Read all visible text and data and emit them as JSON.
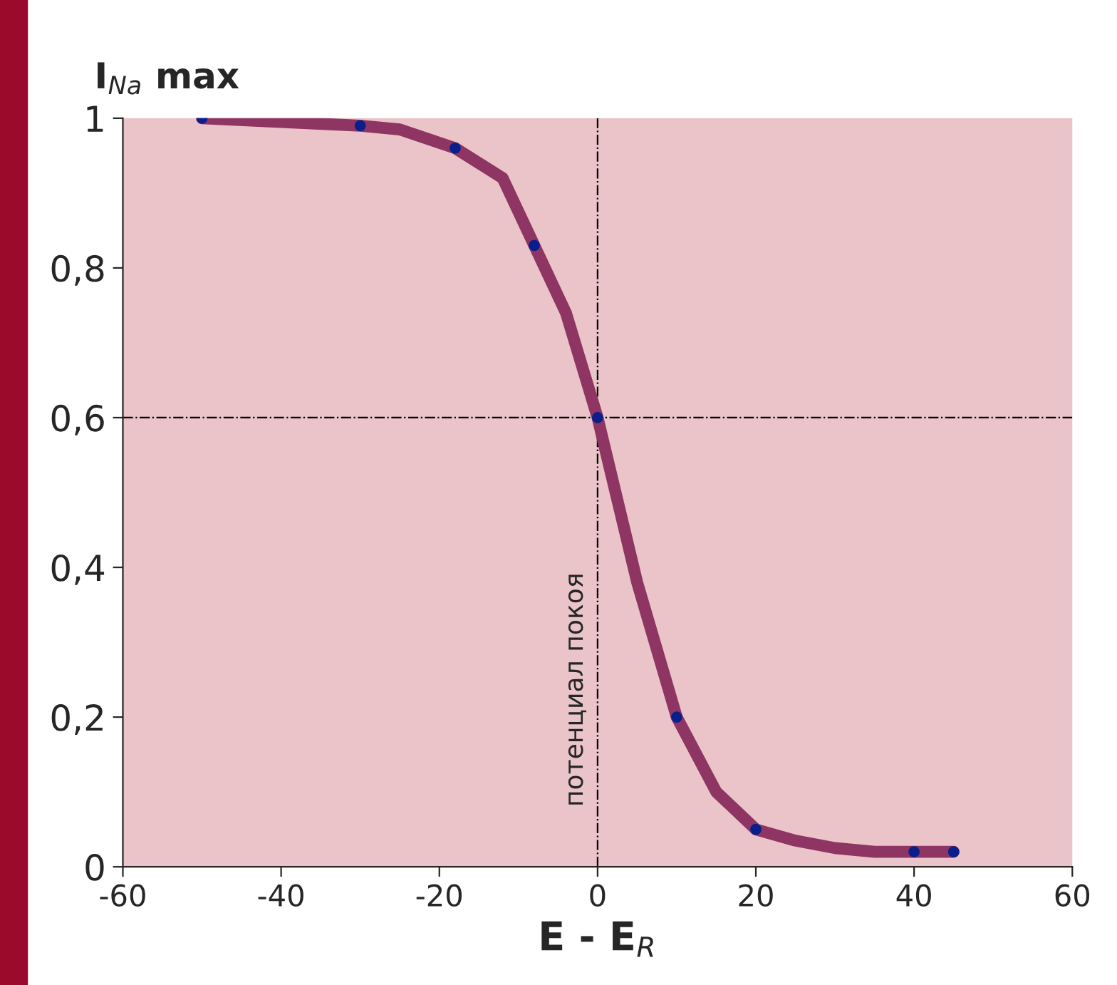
{
  "chart_data": {
    "type": "line",
    "xlabel": "E - E$_{R}$",
    "ylabel": "I$_{Na}$ max",
    "series": [
      {
        "color": "#8e3563",
        "x": [
          -50,
          -40,
          -30,
          -25,
          -18,
          -12,
          -8,
          -4,
          0,
          5,
          10,
          15,
          20,
          25,
          30,
          35,
          40,
          45
        ],
        "values": [
          1,
          0.995,
          0.99,
          0.985,
          0.96,
          0.92,
          0.83,
          0.74,
          0.6,
          0.38,
          0.2,
          0.1,
          0.05,
          0.035,
          0.025,
          0.02,
          0.02,
          0.02
        ]
      },
      {
        "type": "scatter",
        "color": "#0a1f8c",
        "x": [
          -50,
          -30,
          -18,
          -8,
          0,
          10,
          20,
          40,
          45
        ],
        "values": [
          1,
          0.99,
          0.96,
          0.83,
          0.6,
          0.2,
          0.05,
          0.02,
          0.02
        ]
      }
    ],
    "xlim": [
      -60,
      60
    ],
    "xticks": [
      -60,
      -40,
      -20,
      {
        "value": 0,
        "label": "0"
      },
      20,
      40,
      60
    ],
    "ylim": [
      0,
      1
    ],
    "yticks": [
      0,
      "0,2",
      "0,4",
      "0,6",
      "0,8",
      1
    ],
    "ref_lines": [
      {
        "axis": "x",
        "value": 0,
        "label": "потенциал покоя",
        "line_style": "dashdot"
      },
      {
        "axis": "y",
        "value": 0.6,
        "line_style": "dashdot"
      }
    ],
    "grid": false
  }
}
